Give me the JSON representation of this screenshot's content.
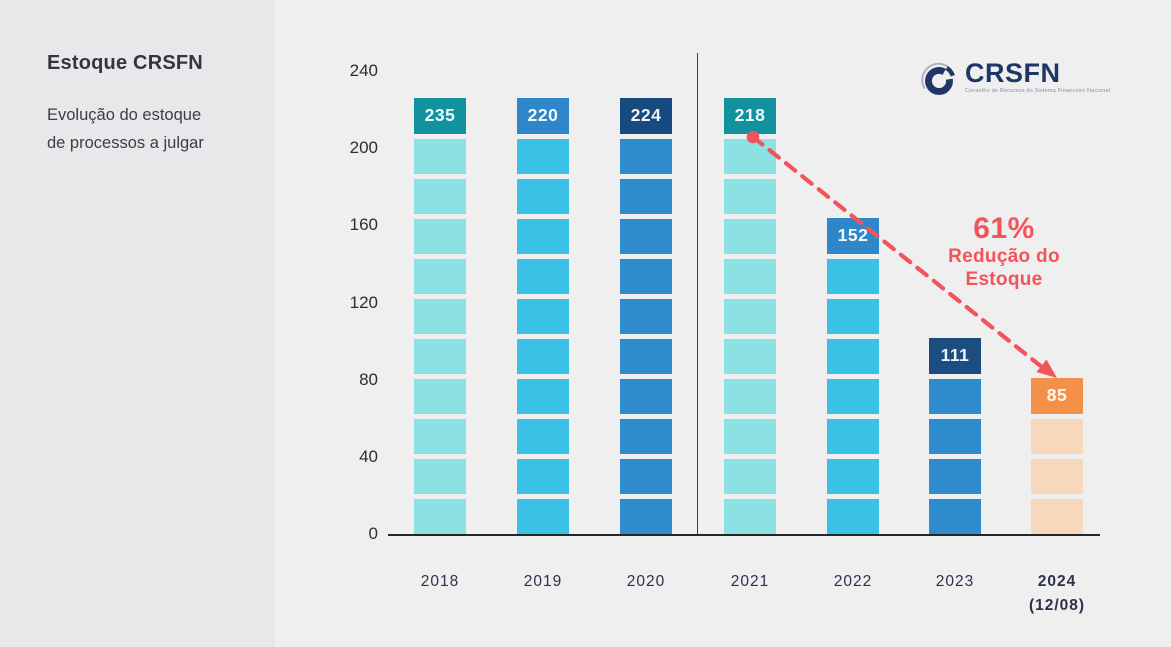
{
  "sidebar": {
    "title": "Estoque CRSFN",
    "subtitle_lines": [
      "Evolução do estoque",
      "de processos a julgar"
    ]
  },
  "logo": {
    "text": "CRSFN",
    "tagline": "Conselho de Recursos do Sistema Financeiro Nacional"
  },
  "annotation": {
    "percent": "61%",
    "label_lines": [
      "Redução do",
      "Estoque"
    ]
  },
  "colors": {
    "sidebar_bg": "#E8E7EA",
    "main_bg": "#F0EFEF",
    "accent_red": "#F2545C",
    "logo_navy": "#1F3766",
    "teal_chip": "#12929E",
    "teal_block": "#8CE1E2",
    "blue_chip": "#2F86C8",
    "cyan_block": "#3BC1E5",
    "navy_chip": "#174A7E",
    "mblue_block": "#2F8CCC",
    "orange_chip": "#F3914B",
    "peach_block": "#F8D8BD"
  },
  "chart_data": {
    "type": "bar",
    "title": "Estoque CRSFN",
    "subtitle": "Evolução do estoque de processos a julgar",
    "categories": [
      "2018",
      "2019",
      "2020",
      "2021",
      "2022",
      "2023",
      "2024 (12/08)"
    ],
    "values": [
      235,
      220,
      224,
      218,
      152,
      111,
      85
    ],
    "xlabel": "",
    "ylabel": "",
    "ylim": [
      0,
      240
    ],
    "yticks": [
      240,
      200,
      160,
      120,
      80,
      40,
      0
    ],
    "grid": false,
    "legend": false,
    "bar_style": "stacked-blocks",
    "bars": [
      {
        "label": "2018",
        "sublabel": "",
        "value": 235,
        "blocks": 10,
        "chip_color": "#12929E",
        "block_color": "#8CE1E2",
        "label_bold": false
      },
      {
        "label": "2019",
        "sublabel": "",
        "value": 220,
        "blocks": 10,
        "chip_color": "#2F86C8",
        "block_color": "#3BC1E5",
        "label_bold": false
      },
      {
        "label": "2020",
        "sublabel": "",
        "value": 224,
        "blocks": 10,
        "chip_color": "#174A7E",
        "block_color": "#2F8CCC",
        "label_bold": false
      },
      {
        "label": "2021",
        "sublabel": "",
        "value": 218,
        "blocks": 10,
        "chip_color": "#12929E",
        "block_color": "#8CE1E2",
        "label_bold": false
      },
      {
        "label": "2022",
        "sublabel": "",
        "value": 152,
        "blocks": 7,
        "chip_color": "#2F86C8",
        "block_color": "#3BC1E5",
        "label_bold": false
      },
      {
        "label": "2023",
        "sublabel": "",
        "value": 111,
        "blocks": 4,
        "chip_color": "#1C4D80",
        "block_color": "#2F8CCC",
        "label_bold": false
      },
      {
        "label": "2024",
        "sublabel": "(12/08)",
        "value": 85,
        "blocks": 3,
        "chip_color": "#F3914B",
        "block_color": "#F8D8BD",
        "label_bold": true
      }
    ],
    "divider_between": [
      "2020",
      "2021"
    ],
    "arrow_annotation": {
      "from_year": "2021",
      "to_year": "2024",
      "percent": "61%",
      "label": "Redução do Estoque",
      "color": "#F2545C"
    }
  }
}
